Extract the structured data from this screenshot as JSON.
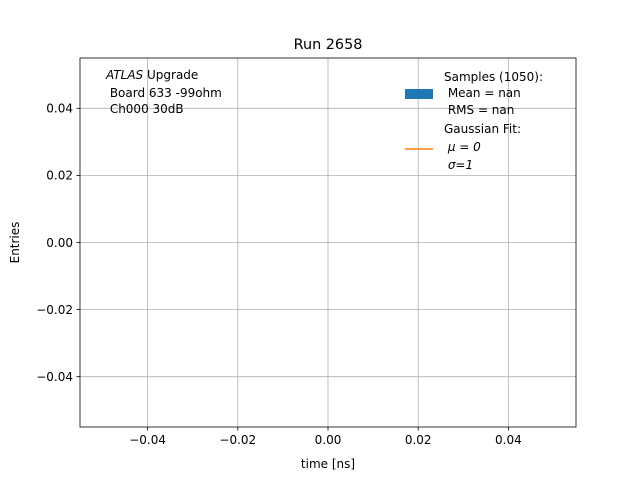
{
  "chart_data": {
    "type": "bar",
    "title": "Run 2658",
    "xlabel": "time [ns]",
    "ylabel": "Entries",
    "xlim": [
      -0.055,
      0.055
    ],
    "ylim": [
      -0.055,
      0.055
    ],
    "xticks": [
      -0.04,
      -0.02,
      0.0,
      0.02,
      0.04
    ],
    "yticks": [
      -0.04,
      -0.02,
      0.0,
      0.02,
      0.04
    ],
    "xtick_labels": [
      "−0.04",
      "−0.02",
      "0.00",
      "0.02",
      "0.04"
    ],
    "ytick_labels": [
      "−0.04",
      "−0.02",
      "0.00",
      "0.02",
      "0.04"
    ],
    "grid": true,
    "series": [
      {
        "type": "histogram",
        "values": [],
        "color": "#1f77b4"
      },
      {
        "type": "line",
        "values": [],
        "color": "#ff7f0e"
      }
    ],
    "annotation": {
      "italic_part": "ATLAS",
      "rest_part": " Upgrade",
      "line2": " Board 633 -99ohm",
      "line3": " Ch000 30dB"
    },
    "legend": {
      "placement": "top-right",
      "entries": [
        {
          "lines": [
            "Samples (1050):",
            " Mean = nan",
            " RMS = nan"
          ],
          "symbol": "patch",
          "color": "#1f77b4"
        },
        {
          "lines": [
            "Gaussian Fit:",
            " μ = 0",
            " σ=1"
          ],
          "symbol": "line",
          "color": "#ff7f0e"
        }
      ]
    }
  }
}
